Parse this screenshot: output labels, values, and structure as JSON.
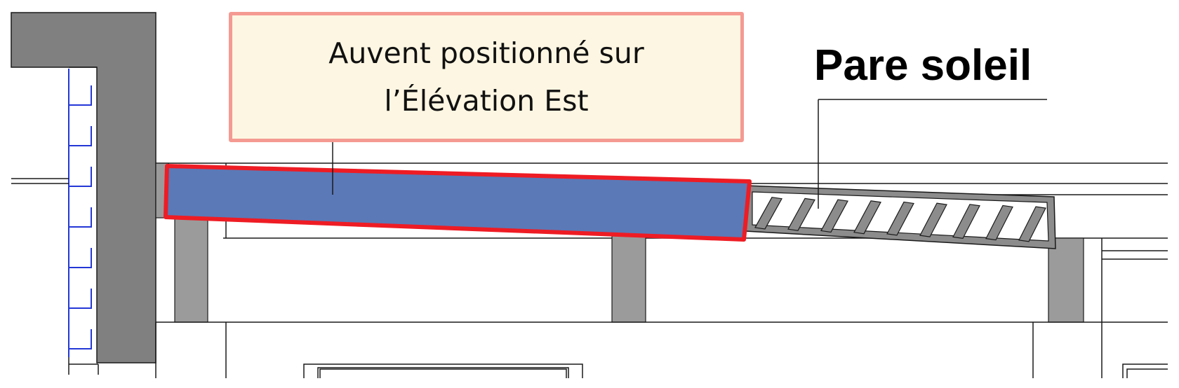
{
  "callout": {
    "line1": "Auvent positionné sur",
    "line2": "l’Élévation Est"
  },
  "label": {
    "text": "Pare soleil"
  },
  "colors": {
    "awning_fill": "#5b79b7",
    "highlight_outline": "#ee1c24",
    "wall_gray": "#808080",
    "column_gray": "#9b9b9b",
    "callout_fill": "#fdf6e2",
    "callout_border": "#f59a92",
    "stair_line": "#2437d6"
  }
}
